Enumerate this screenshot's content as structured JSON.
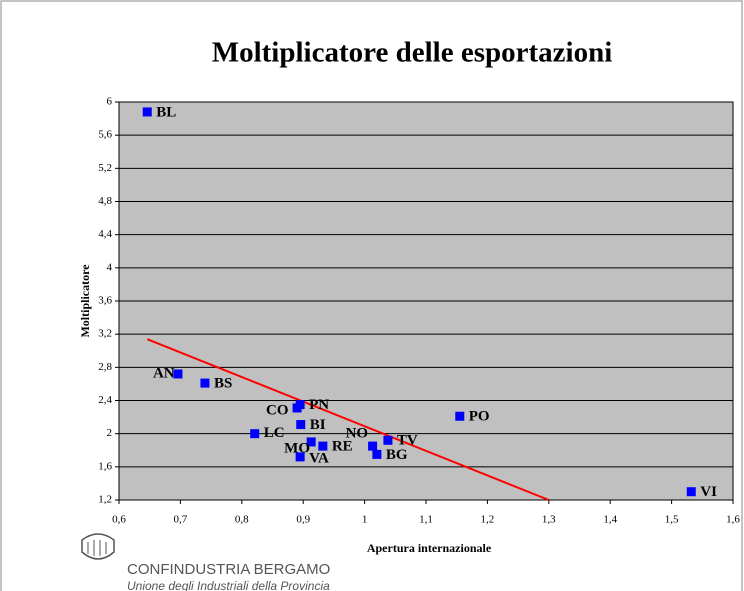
{
  "chart_data": {
    "type": "scatter",
    "title": "Moltiplicatore delle esportazioni",
    "x_label": "Apertura internazionale",
    "y_label": "Moltiplicatore",
    "logo_title": "CONFINDUSTRIA BERGAMO",
    "logo_subtitle": "Unione degli Industriali della Provincia",
    "labels": [
      "BL",
      "AN",
      "BS",
      "CO",
      "PN",
      "BI",
      "LC",
      "MO",
      "RE",
      "VA",
      "NO",
      "TV",
      "BG",
      "PO",
      "VI"
    ],
    "x": [
      0.646,
      0.696,
      0.74,
      0.89,
      0.895,
      0.896,
      0.821,
      0.913,
      0.932,
      0.895,
      1.013,
      1.038,
      1.02,
      1.155,
      1.532
    ],
    "y": [
      5.88,
      2.72,
      2.61,
      2.31,
      2.35,
      2.11,
      2.0,
      1.9,
      1.85,
      1.72,
      1.85,
      1.92,
      1.75,
      2.21,
      1.3
    ],
    "color": "#0000ff",
    "trendline": {
      "color": "#ff0000",
      "x": [
        0.646,
        1.3
      ],
      "y": [
        3.14,
        1.2
      ]
    },
    "plot_background": "#c0c0c0",
    "grid": true,
    "xlim": [
      0.6,
      1.6
    ],
    "ylim": [
      1.2,
      6
    ],
    "xticks": [
      {
        "value": 0.6,
        "label": "0,6"
      },
      {
        "value": 0.7,
        "label": "0,7"
      },
      {
        "value": 0.8,
        "label": "0,8"
      },
      {
        "value": 0.9,
        "label": "0,9"
      },
      1,
      {
        "value": 1.1,
        "label": "1,1"
      },
      {
        "value": 1.2,
        "label": "1,2"
      },
      {
        "value": 1.3,
        "label": "1,3"
      },
      {
        "value": 1.4,
        "label": "1,4"
      },
      {
        "value": 1.5,
        "label": "1,5"
      },
      {
        "value": 1.6,
        "label": "1,6"
      }
    ],
    "yticks": [
      {
        "value": 1.2,
        "label": "1,2"
      },
      {
        "value": 1.6,
        "label": "1,6"
      },
      2,
      {
        "value": 2.4,
        "label": "2,4"
      },
      {
        "value": 2.8,
        "label": "2,8"
      },
      {
        "value": 3.2,
        "label": "3,2"
      },
      {
        "value": 3.6,
        "label": "3,6"
      },
      4,
      {
        "value": 4.4,
        "label": "4,4"
      },
      {
        "value": 4.8,
        "label": "4,8"
      },
      {
        "value": 5.2,
        "label": "5,2"
      },
      {
        "value": 5.6,
        "label": "5,6"
      },
      6
    ]
  }
}
